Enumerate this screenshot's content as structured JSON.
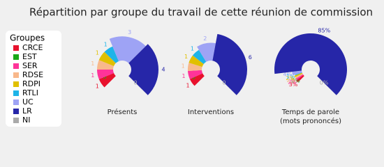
{
  "title": "Répartition par groupe du travail de cette réunion de commission",
  "legend": {
    "title": "Groupes",
    "categories": [
      "CRCE",
      "EST",
      "SER",
      "RDSE",
      "RDPI",
      "RTLI",
      "UC",
      "LR",
      "NI"
    ],
    "colors": [
      "#e8112d",
      "#18a818",
      "#ff3399",
      "#f8b88b",
      "#e0c000",
      "#1eb4e8",
      "#9ea3f5",
      "#2626a8",
      "#aaaaaa"
    ]
  },
  "chart_data": [
    {
      "type": "pie",
      "label": [
        "Présents"
      ],
      "values": [
        1,
        0,
        1,
        1,
        1,
        1,
        3,
        4,
        0
      ]
    },
    {
      "type": "pie",
      "label": [
        "Interventions"
      ],
      "values": [
        1,
        0,
        1,
        1,
        1,
        1,
        2,
        6,
        0
      ]
    },
    {
      "type": "pie",
      "label": [
        "Temps de parole",
        "(mots prononcés)"
      ],
      "values": [
        3,
        0,
        2,
        2,
        2,
        1,
        4,
        85,
        0
      ],
      "value_labels": [
        "3%",
        "0%",
        "2%",
        "2%",
        "2%",
        "1%",
        "4%",
        "85%",
        "0%"
      ]
    }
  ]
}
